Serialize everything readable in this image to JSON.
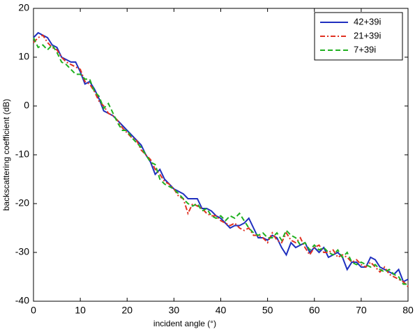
{
  "chart_data": {
    "type": "line",
    "xlabel": "incident angle (°)",
    "ylabel": "backscattering coefficient (dB)",
    "x": [
      0,
      1,
      2,
      3,
      4,
      5,
      6,
      7,
      8,
      9,
      10,
      11,
      12,
      13,
      14,
      15,
      16,
      17,
      18,
      19,
      20,
      21,
      22,
      23,
      24,
      25,
      26,
      27,
      28,
      29,
      30,
      31,
      32,
      33,
      34,
      35,
      36,
      37,
      38,
      39,
      40,
      41,
      42,
      43,
      44,
      45,
      46,
      47,
      48,
      49,
      50,
      51,
      52,
      53,
      54,
      55,
      56,
      57,
      58,
      59,
      60,
      61,
      62,
      63,
      64,
      65,
      66,
      67,
      68,
      69,
      70,
      71,
      72,
      73,
      74,
      75,
      76,
      77,
      78,
      79,
      80
    ],
    "series": [
      {
        "name": "42+39i",
        "color": "#1f2fbf",
        "dash": "solid",
        "values": [
          14,
          15,
          14.5,
          14,
          12.5,
          12,
          10,
          9.5,
          9,
          9,
          7,
          4.5,
          5,
          3.5,
          1.5,
          -1,
          -1.5,
          -2,
          -3,
          -4,
          -5,
          -6,
          -7,
          -8,
          -10,
          -11.5,
          -14,
          -13,
          -15,
          -16,
          -17,
          -17.5,
          -18,
          -19,
          -19,
          -19,
          -21,
          -21,
          -21.5,
          -22.5,
          -23,
          -24,
          -25,
          -24.5,
          -24.5,
          -24,
          -23,
          -25,
          -27,
          -27,
          -27.5,
          -26.5,
          -27,
          -29,
          -30.5,
          -28,
          -29,
          -28.5,
          -28,
          -30,
          -29,
          -30,
          -29,
          -31,
          -30.5,
          -30,
          -31,
          -33.5,
          -32,
          -32,
          -33,
          -33,
          -31,
          -31.5,
          -33,
          -33.5,
          -34,
          -34.5,
          -33.5,
          -36,
          -35.5
        ]
      },
      {
        "name": "21+39i",
        "color": "#e03020",
        "dash": "dashdot",
        "values": [
          13,
          14,
          14.5,
          13,
          12,
          11.5,
          10,
          9,
          8.5,
          8,
          7.5,
          5,
          4.5,
          3,
          1,
          0,
          -1.5,
          -2,
          -3,
          -4.5,
          -5.5,
          -6.5,
          -7,
          -9,
          -10,
          -11,
          -13,
          -14,
          -15.5,
          -16,
          -17,
          -18.5,
          -19,
          -22,
          -20,
          -20.5,
          -21,
          -22,
          -22.5,
          -22.5,
          -23.5,
          -24,
          -24.5,
          -24,
          -25,
          -25.5,
          -25,
          -26.5,
          -26.5,
          -27,
          -28,
          -26,
          -27.5,
          -28,
          -26,
          -27.5,
          -28,
          -27,
          -29,
          -30.5,
          -29,
          -28.5,
          -30,
          -30,
          -29.5,
          -31,
          -30.5,
          -31,
          -32,
          -31.5,
          -32.5,
          -33,
          -32,
          -33,
          -34,
          -33,
          -34.5,
          -35,
          -35.5,
          -36,
          -37
        ]
      },
      {
        "name": "7+39i",
        "color": "#20b020",
        "dash": "dashed",
        "values": [
          14,
          12,
          12.5,
          11.5,
          12.5,
          11,
          9,
          8.5,
          7.5,
          6.5,
          6.5,
          5.5,
          5.5,
          3,
          2,
          -0.5,
          0.5,
          -1.5,
          -3.5,
          -5,
          -5,
          -6.5,
          -7.5,
          -8.5,
          -10,
          -11.5,
          -12,
          -15,
          -16,
          -16.5,
          -17,
          -18,
          -19,
          -20,
          -20.5,
          -20,
          -21.5,
          -21,
          -22.5,
          -23,
          -22.5,
          -23.5,
          -22.5,
          -23,
          -22,
          -23.5,
          -25,
          -26,
          -26.5,
          -26,
          -27,
          -27,
          -26,
          -27.5,
          -25.5,
          -26.5,
          -27,
          -28.5,
          -28,
          -29.5,
          -28.5,
          -29.5,
          -29,
          -30,
          -30.5,
          -29.5,
          -31,
          -30,
          -32,
          -32.5,
          -32,
          -32.5,
          -33,
          -32.5,
          -33.5,
          -34,
          -33.5,
          -34.5,
          -35,
          -36.5,
          -36.5
        ]
      }
    ],
    "xlim": [
      0,
      80
    ],
    "xticks": [
      0,
      10,
      20,
      30,
      40,
      50,
      60,
      70,
      80
    ],
    "ylim": [
      -40,
      20
    ],
    "yticks": [
      -40,
      -30,
      -20,
      -10,
      0,
      10,
      20
    ],
    "legend": "upper right"
  }
}
